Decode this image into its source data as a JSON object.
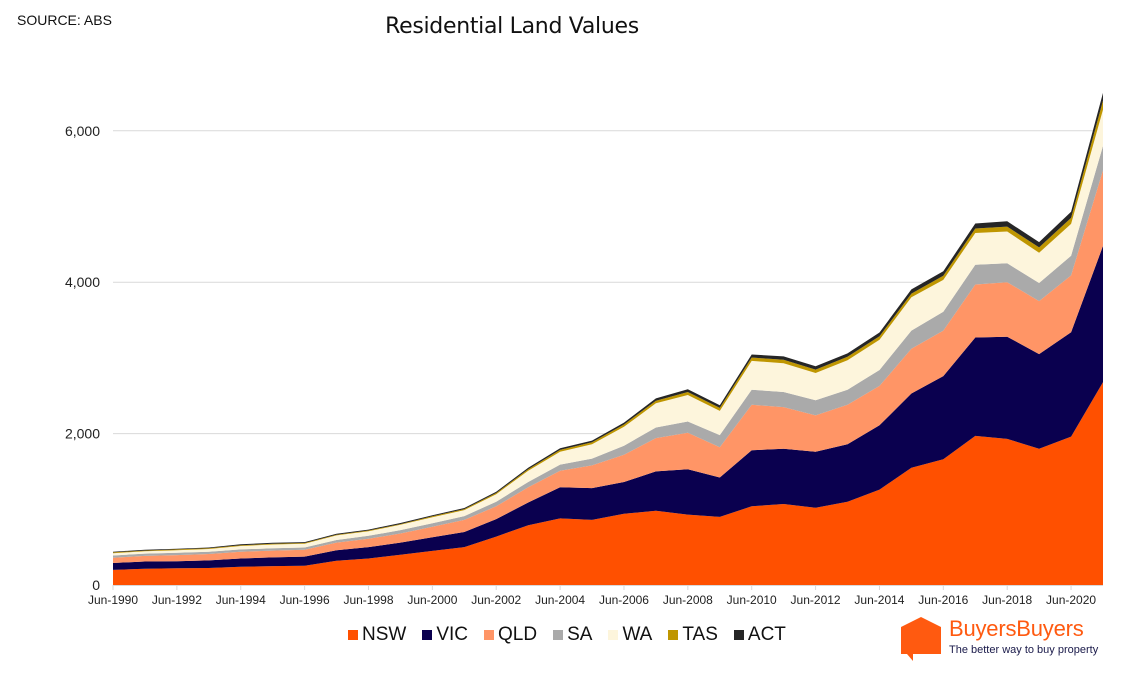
{
  "source_label": "SOURCE: ABS",
  "chart_data": {
    "type": "area",
    "stacked": true,
    "title": "Residential Land Values",
    "xlabel": "",
    "ylabel": "",
    "ylim": [
      0,
      6700
    ],
    "yticks": [
      0,
      2000,
      4000,
      6000
    ],
    "ytick_labels": [
      "0",
      "2,000",
      "4,000",
      "6,000"
    ],
    "grid": true,
    "legend_position": "bottom",
    "x": [
      "Jun-1990",
      "Jun-1991",
      "Jun-1992",
      "Jun-1993",
      "Jun-1994",
      "Jun-1995",
      "Jun-1996",
      "Jun-1997",
      "Jun-1998",
      "Jun-1999",
      "Jun-2000",
      "Jun-2001",
      "Jun-2002",
      "Jun-2003",
      "Jun-2004",
      "Jun-2005",
      "Jun-2006",
      "Jun-2007",
      "Jun-2008",
      "Jun-2009",
      "Jun-2010",
      "Jun-2011",
      "Jun-2012",
      "Jun-2013",
      "Jun-2014",
      "Jun-2015",
      "Jun-2016",
      "Jun-2017",
      "Jun-2018",
      "Jun-2019",
      "Jun-2020",
      "Jun-2021"
    ],
    "xtick_labels": [
      "Jun-1990",
      "Jun-1992",
      "Jun-1994",
      "Jun-1996",
      "Jun-1998",
      "Jun-2000",
      "Jun-2002",
      "Jun-2004",
      "Jun-2006",
      "Jun-2008",
      "Jun-2010",
      "Jun-2012",
      "Jun-2014",
      "Jun-2016",
      "Jun-2018",
      "Jun-2020"
    ],
    "series": [
      {
        "name": "NSW",
        "color": "#ff5000",
        "values": [
          200,
          215,
          220,
          225,
          240,
          250,
          255,
          320,
          350,
          400,
          450,
          500,
          640,
          790,
          880,
          860,
          940,
          980,
          930,
          900,
          1040,
          1070,
          1020,
          1100,
          1260,
          1550,
          1660,
          1970,
          1930,
          1800,
          1960,
          2680
        ]
      },
      {
        "name": "VIC",
        "color": "#0a004f",
        "values": [
          90,
          95,
          95,
          100,
          110,
          115,
          120,
          140,
          150,
          160,
          180,
          200,
          230,
          300,
          410,
          420,
          420,
          520,
          600,
          520,
          740,
          730,
          740,
          760,
          850,
          980,
          1100,
          1300,
          1350,
          1250,
          1380,
          1800
        ]
      },
      {
        "name": "QLD",
        "color": "#ff9566",
        "values": [
          70,
          75,
          80,
          85,
          90,
          90,
          90,
          100,
          110,
          120,
          140,
          160,
          170,
          200,
          220,
          300,
          360,
          440,
          480,
          400,
          600,
          550,
          480,
          520,
          520,
          590,
          600,
          700,
          720,
          700,
          750,
          1000
        ]
      },
      {
        "name": "SA",
        "color": "#aaaaaa",
        "values": [
          30,
          30,
          30,
          30,
          30,
          30,
          30,
          35,
          40,
          45,
          45,
          50,
          60,
          70,
          80,
          90,
          120,
          140,
          150,
          160,
          200,
          200,
          200,
          200,
          210,
          240,
          250,
          260,
          250,
          240,
          260,
          320
        ]
      },
      {
        "name": "WA",
        "color": "#fdf5dc",
        "values": [
          30,
          30,
          35,
          35,
          45,
          50,
          50,
          60,
          60,
          70,
          80,
          80,
          100,
          150,
          170,
          190,
          250,
          320,
          350,
          320,
          380,
          380,
          360,
          390,
          400,
          440,
          420,
          420,
          420,
          400,
          420,
          480
        ]
      },
      {
        "name": "TAS",
        "color": "#bf9600",
        "values": [
          10,
          10,
          10,
          10,
          10,
          10,
          10,
          10,
          10,
          10,
          12,
          12,
          15,
          20,
          25,
          25,
          30,
          35,
          40,
          40,
          45,
          45,
          45,
          45,
          45,
          50,
          55,
          60,
          65,
          70,
          80,
          120
        ]
      },
      {
        "name": "ACT",
        "color": "#262626",
        "values": [
          10,
          10,
          10,
          10,
          12,
          12,
          12,
          12,
          12,
          14,
          15,
          15,
          18,
          20,
          22,
          22,
          25,
          30,
          35,
          35,
          40,
          45,
          45,
          45,
          50,
          55,
          60,
          65,
          70,
          70,
          80,
          100
        ]
      }
    ]
  },
  "logo": {
    "name": "BuyersBuyers",
    "tagline": "The better way to buy property",
    "brand_color": "#ff5a10",
    "tagline_color": "#1a1a4a"
  }
}
